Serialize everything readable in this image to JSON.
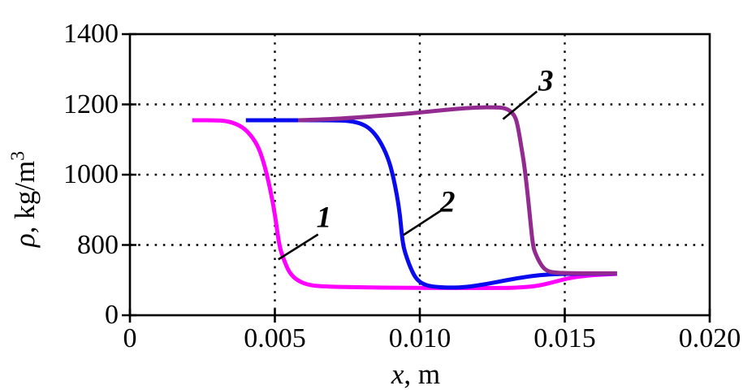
{
  "figure": {
    "background": "#ffffff",
    "axis_color": "#000000",
    "grid_color": "#000000"
  },
  "chart_data": {
    "type": "line",
    "title": "",
    "xlabel_var": "x",
    "xlabel_rest": ", m",
    "ylabel_var": "ρ",
    "ylabel_rest": ", kg/m",
    "ylabel_sup": "3",
    "x_axis": {
      "tick_values": [
        0,
        0.005,
        0.01,
        0.015,
        0.02
      ],
      "tick_labels": [
        "0",
        "0.005",
        "0.010",
        "0.015",
        "0.020"
      ],
      "scale": "linear"
    },
    "y_axis": {
      "tick_values": [
        0,
        800,
        1000,
        1200,
        1400
      ],
      "tick_labels": [
        "0",
        "800",
        "1000",
        "1200",
        "1400"
      ],
      "scale": "piecewise: consecutive labeled ticks equally spaced (0-800 segment compressed)"
    },
    "grid": "dotted, at interior ticks",
    "legend_position": "none (curves labeled 1, 2, 3 with pointer lines)",
    "series": [
      {
        "name": "1",
        "color": "#ff00ff",
        "points": [
          [
            0.00215,
            1155
          ],
          [
            0.003,
            1155
          ],
          [
            0.0034,
            1152
          ],
          [
            0.0038,
            1140
          ],
          [
            0.0041,
            1120
          ],
          [
            0.0044,
            1085
          ],
          [
            0.0046,
            1040
          ],
          [
            0.0048,
            975
          ],
          [
            0.005,
            890
          ],
          [
            0.00515,
            790
          ],
          [
            0.0053,
            640
          ],
          [
            0.0055,
            480
          ],
          [
            0.0058,
            390
          ],
          [
            0.0062,
            340
          ],
          [
            0.0068,
            325
          ],
          [
            0.008,
            318
          ],
          [
            0.0095,
            312
          ],
          [
            0.011,
            310
          ],
          [
            0.0125,
            310
          ],
          [
            0.0133,
            312
          ],
          [
            0.014,
            330
          ],
          [
            0.0146,
            375
          ],
          [
            0.0151,
            420
          ],
          [
            0.0157,
            450
          ],
          [
            0.0162,
            462
          ],
          [
            0.0168,
            470
          ]
        ]
      },
      {
        "name": "2",
        "color": "#0a0aee",
        "points": [
          [
            0.004,
            1155
          ],
          [
            0.006,
            1155
          ],
          [
            0.007,
            1155
          ],
          [
            0.0076,
            1153
          ],
          [
            0.008,
            1145
          ],
          [
            0.0083,
            1130
          ],
          [
            0.0086,
            1100
          ],
          [
            0.0089,
            1050
          ],
          [
            0.0091,
            990
          ],
          [
            0.0093,
            900
          ],
          [
            0.0094,
            810
          ],
          [
            0.0095,
            700
          ],
          [
            0.0097,
            520
          ],
          [
            0.0099,
            400
          ],
          [
            0.0102,
            340
          ],
          [
            0.0106,
            320
          ],
          [
            0.0111,
            314
          ],
          [
            0.0116,
            320
          ],
          [
            0.0123,
            355
          ],
          [
            0.013,
            400
          ],
          [
            0.0137,
            440
          ],
          [
            0.0143,
            462
          ],
          [
            0.015,
            472
          ],
          [
            0.016,
            474
          ],
          [
            0.0168,
            475
          ]
        ]
      },
      {
        "name": "3",
        "color": "#932a90",
        "points": [
          [
            0.0058,
            1155
          ],
          [
            0.0066,
            1157
          ],
          [
            0.0075,
            1161
          ],
          [
            0.0085,
            1167
          ],
          [
            0.0095,
            1173
          ],
          [
            0.0105,
            1181
          ],
          [
            0.0112,
            1187
          ],
          [
            0.0119,
            1191
          ],
          [
            0.0126,
            1192
          ],
          [
            0.0129,
            1190
          ],
          [
            0.0131,
            1183
          ],
          [
            0.0133,
            1165
          ],
          [
            0.0134,
            1130
          ],
          [
            0.0135,
            1080
          ],
          [
            0.0136,
            1030
          ],
          [
            0.0137,
            960
          ],
          [
            0.0138,
            880
          ],
          [
            0.0139,
            790
          ],
          [
            0.014,
            690
          ],
          [
            0.0142,
            560
          ],
          [
            0.0144,
            500
          ],
          [
            0.0147,
            483
          ],
          [
            0.0152,
            478
          ],
          [
            0.016,
            477
          ],
          [
            0.0168,
            478
          ]
        ]
      }
    ],
    "annotations": [
      {
        "label": "1",
        "x": 0.00669,
        "y": 877,
        "line": {
          "x1": 0.00649,
          "y1": 830,
          "x2": 0.00512,
          "y2": 636
        }
      },
      {
        "label": "2",
        "x": 0.01096,
        "y": 921,
        "line": {
          "x1": 0.01077,
          "y1": 900,
          "x2": 0.00943,
          "y2": 828
        }
      },
      {
        "label": "3",
        "x": 0.01435,
        "y": 1267,
        "line": {
          "x1": 0.01404,
          "y1": 1237,
          "x2": 0.01287,
          "y2": 1158
        }
      }
    ]
  }
}
